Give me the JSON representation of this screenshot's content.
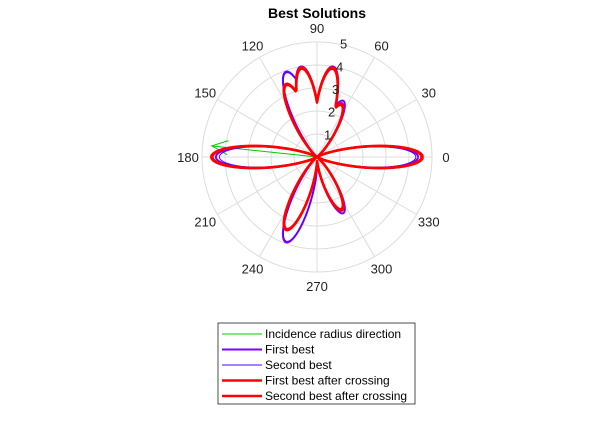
{
  "chart_data": {
    "type": "polar-line",
    "title": "Best Solutions",
    "theta_ticks": [
      "0",
      "30",
      "60",
      "90",
      "120",
      "150",
      "180",
      "210",
      "240",
      "270",
      "300",
      "330"
    ],
    "theta_tick_values": [
      0,
      30,
      60,
      90,
      120,
      150,
      180,
      210,
      240,
      270,
      300,
      330
    ],
    "r_ticks": [
      "1",
      "2",
      "3",
      "4",
      "5"
    ],
    "r_tick_values": [
      1,
      2,
      3,
      4,
      5
    ],
    "rlim": [
      0,
      5
    ],
    "grid": true,
    "legend_position": "bottom",
    "series": [
      {
        "name": "Incidence radius direction",
        "kind": "ray",
        "color": "#00cc00",
        "theta_deg": 174,
        "r": 4.6,
        "arrow": true
      },
      {
        "name": "First best",
        "kind": "pattern",
        "color": "#7f00ff",
        "lobes": [
          {
            "theta": 0,
            "r": 4.4
          },
          {
            "theta": 180,
            "r": 4.4
          },
          {
            "theta": 80,
            "r": 4.0
          },
          {
            "theta": 100,
            "r": 4.0
          },
          {
            "theta": 110,
            "r": 3.95
          },
          {
            "theta": 250,
            "r": 3.95
          },
          {
            "theta": 65,
            "r": 2.7
          },
          {
            "theta": 295,
            "r": 2.7
          }
        ]
      },
      {
        "name": "Second best",
        "kind": "pattern",
        "color": "#5500ff",
        "lobes": [
          {
            "theta": 0,
            "r": 4.3
          },
          {
            "theta": 180,
            "r": 4.25
          },
          {
            "theta": 80,
            "r": 3.95
          },
          {
            "theta": 100,
            "r": 3.9
          },
          {
            "theta": 110,
            "r": 3.9
          },
          {
            "theta": 250,
            "r": 3.9
          },
          {
            "theta": 65,
            "r": 2.6
          },
          {
            "theta": 295,
            "r": 2.6
          }
        ]
      },
      {
        "name": "First best after crossing",
        "kind": "pattern",
        "color": "#ff0000",
        "lobes": [
          {
            "theta": 0,
            "r": 4.55
          },
          {
            "theta": 180,
            "r": 4.55
          },
          {
            "theta": 80,
            "r": 3.9
          },
          {
            "theta": 100,
            "r": 3.9
          },
          {
            "theta": 113,
            "r": 3.4
          },
          {
            "theta": 247,
            "r": 3.4
          },
          {
            "theta": 65,
            "r": 2.5
          },
          {
            "theta": 295,
            "r": 2.5
          }
        ]
      },
      {
        "name": "Second best after crossing",
        "kind": "pattern",
        "color": "#ff0000",
        "lobes": [
          {
            "theta": 0,
            "r": 4.6
          },
          {
            "theta": 180,
            "r": 4.6
          },
          {
            "theta": 80,
            "r": 3.95
          },
          {
            "theta": 100,
            "r": 3.95
          },
          {
            "theta": 113,
            "r": 3.45
          },
          {
            "theta": 247,
            "r": 3.45
          },
          {
            "theta": 65,
            "r": 2.55
          },
          {
            "theta": 295,
            "r": 2.55
          }
        ]
      }
    ]
  }
}
